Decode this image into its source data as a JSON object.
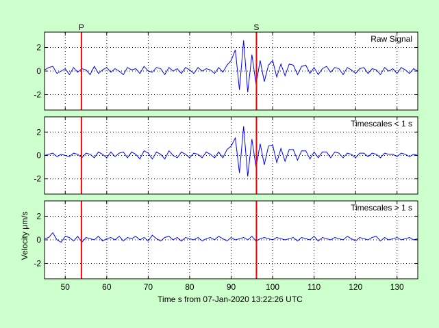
{
  "colors": {
    "background": "#ccffcc",
    "plot_background": "#ffffff",
    "signal": "#0000ff",
    "phase_marker": "#ff0000",
    "grid": "#000000"
  },
  "chart_data": {
    "type": "line",
    "layout": "3 stacked panels sharing the x axis",
    "xlabel": "Time s from 07-Jan-2020 13:22:26 UTC",
    "ylabel": "Velocity μm/s",
    "xlim": [
      45,
      135
    ],
    "xticks": [
      50,
      60,
      70,
      80,
      90,
      100,
      110,
      120,
      130
    ],
    "grid": "dotted",
    "phase_markers": [
      {
        "label": "P",
        "x": 53.9
      },
      {
        "label": "S",
        "x": 96.1
      }
    ],
    "panels": [
      {
        "title": "Raw Signal",
        "ylim": [
          -3.3,
          3.3
        ],
        "yticks": [
          -2,
          0,
          2
        ],
        "series_x_start": 45,
        "series_x_step": 1,
        "series": [
          {
            "values": [
              0.1,
              0.3,
              0.4,
              -0.2,
              0.0,
              0.2,
              -0.3,
              0.3,
              -0.1,
              0.2,
              0.1,
              -0.3,
              0.4,
              -0.2,
              0.1,
              0.3,
              -0.1,
              0.2,
              0.0,
              -0.3,
              0.3,
              0.1,
              0.2,
              -0.2,
              0.4,
              0.0,
              -0.1,
              0.3,
              0.2,
              -0.3,
              0.3,
              0.0,
              0.2,
              -0.2,
              0.3,
              0.1,
              -0.2,
              0.3,
              0.0,
              0.2,
              0.1,
              -0.2,
              0.3,
              -0.1,
              0.5,
              0.9,
              1.8,
              -1.6,
              2.6,
              -1.8,
              1.4,
              -1.1,
              0.9,
              -0.9,
              0.5,
              0.9,
              -0.5,
              0.6,
              -0.4,
              0.6,
              0.5,
              -0.3,
              0.4,
              0.5,
              -0.2,
              0.3,
              -0.3,
              0.2,
              0.4,
              -0.1,
              0.3,
              0.2,
              -0.3,
              0.3,
              0.1,
              -0.2,
              0.2,
              0.3,
              -0.2,
              0.2,
              0.1,
              -0.3,
              0.3,
              0.0,
              0.2,
              -0.2,
              0.3,
              0.1,
              -0.2,
              0.2,
              0.0
            ]
          }
        ]
      },
      {
        "title": "Timescales < 1 s",
        "ylim": [
          -3.3,
          3.3
        ],
        "yticks": [
          -2,
          0,
          2
        ],
        "series_x_start": 45,
        "series_x_step": 1,
        "series": [
          {
            "values": [
              0.0,
              0.1,
              0.2,
              -0.1,
              0.1,
              0.0,
              -0.1,
              0.2,
              0.1,
              -0.2,
              0.2,
              0.1,
              -0.2,
              0.3,
              0.1,
              -0.2,
              0.3,
              -0.1,
              0.2,
              0.3,
              -0.2,
              0.3,
              0.1,
              -0.3,
              0.4,
              0.2,
              -0.3,
              0.3,
              0.1,
              -0.3,
              0.4,
              0.0,
              -0.2,
              0.3,
              0.1,
              -0.2,
              0.2,
              0.1,
              -0.2,
              0.3,
              0.1,
              -0.2,
              0.3,
              -0.2,
              0.5,
              0.8,
              1.5,
              -1.5,
              2.5,
              -1.8,
              1.4,
              -1.0,
              1.0,
              -0.8,
              0.8,
              0.9,
              -0.6,
              0.6,
              -0.5,
              0.5,
              0.5,
              -0.4,
              0.4,
              0.4,
              -0.3,
              0.3,
              -0.2,
              0.3,
              0.3,
              -0.2,
              0.3,
              0.2,
              -0.2,
              0.2,
              0.1,
              -0.2,
              0.2,
              0.2,
              -0.1,
              0.2,
              0.1,
              -0.2,
              0.2,
              0.1,
              0.1,
              -0.1,
              0.2,
              0.1,
              -0.1,
              0.1,
              0.0
            ]
          }
        ]
      },
      {
        "title": "Timescales > 1 s",
        "ylim": [
          -3.3,
          3.3
        ],
        "yticks": [
          -2,
          0,
          2
        ],
        "series_x_start": 45,
        "series_x_step": 1,
        "series": [
          {
            "values": [
              0.1,
              0.2,
              0.6,
              0.0,
              -0.2,
              0.3,
              0.2,
              -0.1,
              0.3,
              -0.2,
              0.2,
              0.1,
              0.0,
              0.3,
              -0.1,
              0.1,
              0.2,
              0.0,
              0.3,
              -0.1,
              0.2,
              0.1,
              0.3,
              0.0,
              0.2,
              -0.1,
              0.4,
              0.1,
              -0.1,
              0.2,
              0.3,
              0.0,
              0.2,
              -0.1,
              0.2,
              0.1,
              0.0,
              0.2,
              -0.1,
              0.1,
              0.2,
              0.0,
              0.3,
              0.1,
              -0.1,
              0.2,
              0.0,
              0.1,
              0.2,
              0.0,
              0.3,
              -0.1,
              0.1,
              0.2,
              0.1,
              0.0,
              0.2,
              0.1,
              0.0,
              0.1,
              0.2,
              -0.1,
              0.2,
              0.1,
              0.0,
              0.3,
              -0.1,
              0.2,
              0.1,
              0.0,
              0.2,
              0.1,
              0.0,
              0.3,
              0.1,
              -0.1,
              0.2,
              0.1,
              0.0,
              0.2,
              0.3,
              -0.1,
              0.2,
              0.0,
              0.1,
              0.2,
              0.0,
              0.1,
              0.2,
              0.0,
              0.1
            ]
          }
        ]
      }
    ]
  }
}
